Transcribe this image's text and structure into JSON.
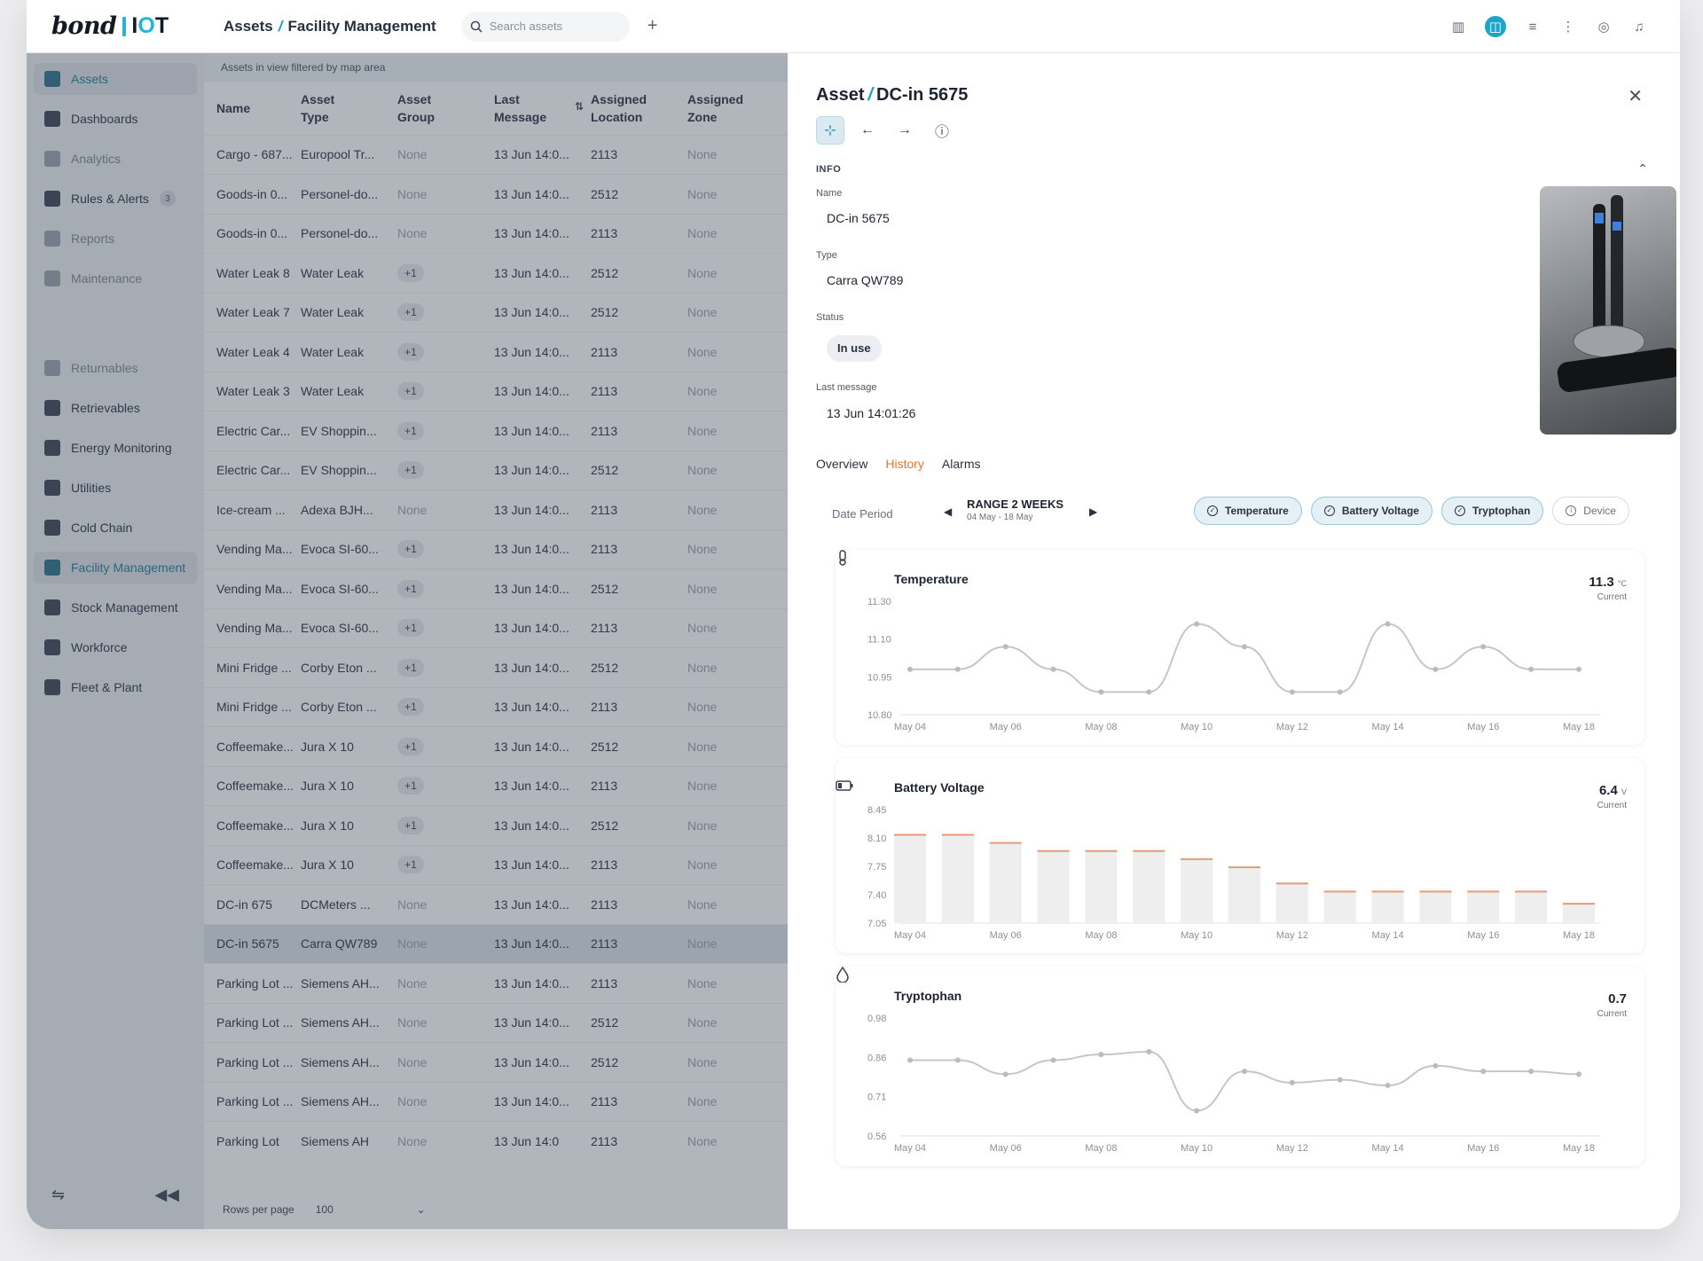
{
  "brand": {
    "word": "bond",
    "iot_prefix": "I",
    "iot_accent": "O",
    "iot_suffix": "T"
  },
  "header": {
    "crumb_root": "Assets",
    "crumb_current": "Facility Management",
    "search_placeholder": "Search assets"
  },
  "sidebar": {
    "items": [
      {
        "label": "Assets",
        "state": "active",
        "icon": "cube-icon"
      },
      {
        "label": "Dashboards",
        "state": "normal",
        "icon": "grid-icon"
      },
      {
        "label": "Analytics",
        "state": "muted",
        "icon": "chart-icon"
      },
      {
        "label": "Rules & Alerts",
        "state": "normal",
        "icon": "bell-icon",
        "badge": "3"
      },
      {
        "label": "Reports",
        "state": "muted",
        "icon": "book-icon"
      },
      {
        "label": "Maintenance",
        "state": "muted",
        "icon": "gear-icon"
      },
      {
        "label": "",
        "state": "spacer"
      },
      {
        "label": "Returnables",
        "state": "muted",
        "icon": "box-icon"
      },
      {
        "label": "Retrievables",
        "state": "normal",
        "icon": "line-chart-icon"
      },
      {
        "label": "Energy Monitoring",
        "state": "normal",
        "icon": "bolt-icon"
      },
      {
        "label": "Utilities",
        "state": "normal",
        "icon": "home-icon"
      },
      {
        "label": "Cold Chain",
        "state": "normal",
        "icon": "thermometer-icon"
      },
      {
        "label": "Facility Management",
        "state": "active",
        "icon": "sliders-icon"
      },
      {
        "label": "Stock Management",
        "state": "normal",
        "icon": "warehouse-icon"
      },
      {
        "label": "Workforce",
        "state": "normal",
        "icon": "person-icon"
      },
      {
        "label": "Fleet & Plant",
        "state": "normal",
        "icon": "truck-icon"
      }
    ]
  },
  "table": {
    "filter_note": "Assets in view filtered by map area",
    "columns": [
      {
        "l1": "Name",
        "l2": ""
      },
      {
        "l1": "Asset",
        "l2": "Type"
      },
      {
        "l1": "Asset",
        "l2": "Group"
      },
      {
        "l1": "Last",
        "l2": "Message"
      },
      {
        "l1": "Assigned",
        "l2": "Location"
      },
      {
        "l1": "Assigned",
        "l2": "Zone"
      }
    ],
    "rows": [
      [
        "Cargo - 687...",
        "Europool Tr...",
        "None",
        "13 Jun 14:0...",
        "2113",
        "None"
      ],
      [
        "Goods-in 0...",
        "Personel-do...",
        "None",
        "13 Jun 14:0...",
        "2512",
        "None"
      ],
      [
        "Goods-in 0...",
        "Personel-do...",
        "None",
        "13 Jun 14:0...",
        "2113",
        "None"
      ],
      [
        "Water Leak 8",
        "Water Leak",
        "+1",
        "13 Jun 14:0...",
        "2512",
        "None"
      ],
      [
        "Water Leak 7",
        "Water Leak",
        "+1",
        "13 Jun 14:0...",
        "2512",
        "None"
      ],
      [
        "Water Leak 4",
        "Water Leak",
        "+1",
        "13 Jun 14:0...",
        "2113",
        "None"
      ],
      [
        "Water Leak 3",
        "Water Leak",
        "+1",
        "13 Jun 14:0...",
        "2113",
        "None"
      ],
      [
        "Electric Car...",
        "EV Shoppin...",
        "+1",
        "13 Jun 14:0...",
        "2113",
        "None"
      ],
      [
        "Electric Car...",
        "EV Shoppin...",
        "+1",
        "13 Jun 14:0...",
        "2512",
        "None"
      ],
      [
        "Ice-cream ...",
        "Adexa BJH...",
        "None",
        "13 Jun 14:0...",
        "2113",
        "None"
      ],
      [
        "Vending Ma...",
        "Evoca SI-60...",
        "+1",
        "13 Jun 14:0...",
        "2113",
        "None"
      ],
      [
        "Vending Ma...",
        "Evoca SI-60...",
        "+1",
        "13 Jun 14:0...",
        "2512",
        "None"
      ],
      [
        "Vending Ma...",
        "Evoca SI-60...",
        "+1",
        "13 Jun 14:0...",
        "2113",
        "None"
      ],
      [
        "Mini Fridge ...",
        "Corby Eton ...",
        "+1",
        "13 Jun 14:0...",
        "2512",
        "None"
      ],
      [
        "Mini Fridge ...",
        "Corby Eton ...",
        "+1",
        "13 Jun 14:0...",
        "2113",
        "None"
      ],
      [
        "Coffeemake...",
        "Jura X 10",
        "+1",
        "13 Jun 14:0...",
        "2512",
        "None"
      ],
      [
        "Coffeemake...",
        "Jura X 10",
        "+1",
        "13 Jun 14:0...",
        "2113",
        "None"
      ],
      [
        "Coffeemake...",
        "Jura X 10",
        "+1",
        "13 Jun 14:0...",
        "2512",
        "None"
      ],
      [
        "Coffeemake...",
        "Jura X 10",
        "+1",
        "13 Jun 14:0...",
        "2113",
        "None"
      ],
      [
        "DC-in 675",
        "DCMeters ...",
        "None",
        "13 Jun 14:0...",
        "2113",
        "None"
      ],
      [
        "DC-in 5675",
        "Carra QW789",
        "None",
        "13 Jun 14:0...",
        "2113",
        "None"
      ],
      [
        "Parking Lot ...",
        "Siemens AH...",
        "None",
        "13 Jun 14:0...",
        "2113",
        "None"
      ],
      [
        "Parking Lot ...",
        "Siemens AH...",
        "None",
        "13 Jun 14:0...",
        "2512",
        "None"
      ],
      [
        "Parking Lot ...",
        "Siemens AH...",
        "None",
        "13 Jun 14:0...",
        "2512",
        "None"
      ],
      [
        "Parking Lot ...",
        "Siemens AH...",
        "None",
        "13 Jun 14:0...",
        "2113",
        "None"
      ],
      [
        "Parking Lot",
        "Siemens AH",
        "None",
        "13 Jun 14:0",
        "2113",
        "None"
      ]
    ],
    "selected_row": 20,
    "rows_per_page_label": "Rows per page",
    "rows_per_page_value": "100"
  },
  "detail": {
    "title_root": "Asset",
    "title_name": "DC-in 5675",
    "info_heading": "INFO",
    "fields": {
      "name_label": "Name",
      "name_value": "DC-in 5675",
      "type_label": "Type",
      "type_value": "Carra QW789",
      "status_label": "Status",
      "status_value": "In use",
      "last_label": "Last message",
      "last_value": "13 Jun 14:01:26"
    },
    "tabs": [
      "Overview",
      "History",
      "Alarms"
    ],
    "active_tab": 1,
    "period_label": "Date Period",
    "range_title": "RANGE 2 WEEKS",
    "range_sub": "04 May - 18 May",
    "chips": [
      {
        "label": "Temperature",
        "on": true
      },
      {
        "label": "Battery Voltage",
        "on": true
      },
      {
        "label": "Tryptophan",
        "on": true
      },
      {
        "label": "Device",
        "on": false
      }
    ]
  },
  "colors": {
    "accent": "#1aa6c9",
    "tab_active": "#e2772f",
    "bar_top": "#e89a72",
    "bar_fill": "#eeeeef",
    "line": "#c4c6ca"
  },
  "chart_data": [
    {
      "type": "line",
      "title": "Temperature",
      "current_value": "11.3",
      "current_unit": "°C",
      "current_label": "Current",
      "x_ticks": [
        "May 04",
        "May 06",
        "May 08",
        "May 10",
        "May 12",
        "May 14",
        "May 16",
        "May 18"
      ],
      "y_ticks": [
        "11.30",
        "11.10",
        "10.95",
        "10.80"
      ],
      "ylim": [
        10.8,
        11.3
      ],
      "values": [
        11.0,
        11.0,
        11.1,
        11.0,
        10.9,
        10.9,
        11.2,
        11.1,
        10.9,
        10.9,
        11.2,
        11.0,
        11.1,
        11.0,
        11.0
      ]
    },
    {
      "type": "bar",
      "title": "Battery Voltage",
      "current_value": "6.4",
      "current_unit": "V",
      "current_label": "Current",
      "x_ticks": [
        "May 04",
        "May 06",
        "May 08",
        "May 10",
        "May 12",
        "May 14",
        "May 16",
        "May 18"
      ],
      "y_ticks": [
        "8.45",
        "8.10",
        "7.75",
        "7.40",
        "7.05"
      ],
      "ylim": [
        7.05,
        8.45
      ],
      "values": [
        8.15,
        8.15,
        8.05,
        7.95,
        7.95,
        7.95,
        7.85,
        7.75,
        7.55,
        7.45,
        7.45,
        7.45,
        7.45,
        7.45,
        7.3
      ]
    },
    {
      "type": "line",
      "title": "Tryptophan",
      "current_value": "0.7",
      "current_unit": "",
      "current_label": "Current",
      "x_ticks": [
        "May 04",
        "May 06",
        "May 08",
        "May 10",
        "May 12",
        "May 14",
        "May 16",
        "May 18"
      ],
      "y_ticks": [
        "0.98",
        "0.86",
        "0.71",
        "0.56"
      ],
      "ylim": [
        0.56,
        0.98
      ],
      "values": [
        0.83,
        0.83,
        0.78,
        0.83,
        0.85,
        0.86,
        0.65,
        0.79,
        0.75,
        0.76,
        0.74,
        0.81,
        0.79,
        0.79,
        0.78
      ]
    }
  ]
}
